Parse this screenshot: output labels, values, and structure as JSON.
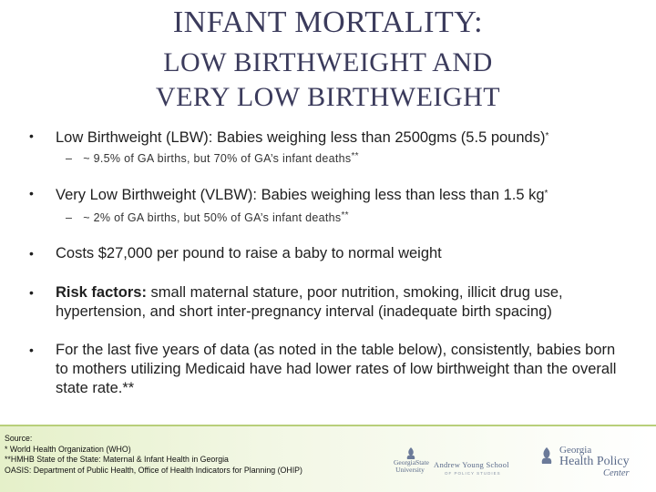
{
  "title": {
    "line1": "INFANT MORTALITY:",
    "line2": "LOW BIRTHWEIGHT AND",
    "line3": "VERY LOW BIRTHWEIGHT"
  },
  "bullets": [
    {
      "text": "Low Birthweight (LBW): Babies weighing less than 2500gms (5.5 pounds)",
      "mark": "*",
      "sub": {
        "text": "~ 9.5% of GA births, but 70% of GA’s infant deaths",
        "mark": "**"
      }
    },
    {
      "text": "Very Low Birthweight (VLBW): Babies weighing less than less than 1.5 kg",
      "mark": "*",
      "sub": {
        "text": "~ 2% of GA births, but 50% of GA’s infant deaths",
        "mark": "**"
      }
    },
    {
      "text": "Costs $27,000 per pound to raise a baby to normal weight"
    },
    {
      "label": "Risk factors:",
      "text": " small maternal stature, poor nutrition, smoking, illicit drug use, hypertension, and short inter-pregnancy interval (inadequate birth spacing)"
    },
    {
      "text": "For the last five years of data (as noted in the table below), consistently, babies born to mothers utilizing Medicaid have had lower rates of low birthweight than the overall state rate.**"
    }
  ],
  "bullet_glyph": "•",
  "sub_dash": "–",
  "source": {
    "heading": "Source:",
    "line1": "* World Health Organization (WHO)",
    "line2": "**HMHB State of the State: Maternal & Infant Health in Georgia",
    "line3": "OASIS: Department of Public Health, Office of Health Indicators for Planning (OHIP)"
  },
  "logos": {
    "gsu_line1": "GeorgiaState",
    "gsu_line2": "University",
    "ays": "Andrew Young School",
    "ays_sub": "OF POLICY STUDIES",
    "ghpc_line1": "Georgia",
    "ghpc_line2": "Health Policy",
    "ghpc_line3": "Center"
  },
  "colors": {
    "title": "#3b3b5c",
    "footer_band": "#e5f0c9",
    "logo": "#5a6a8a"
  }
}
